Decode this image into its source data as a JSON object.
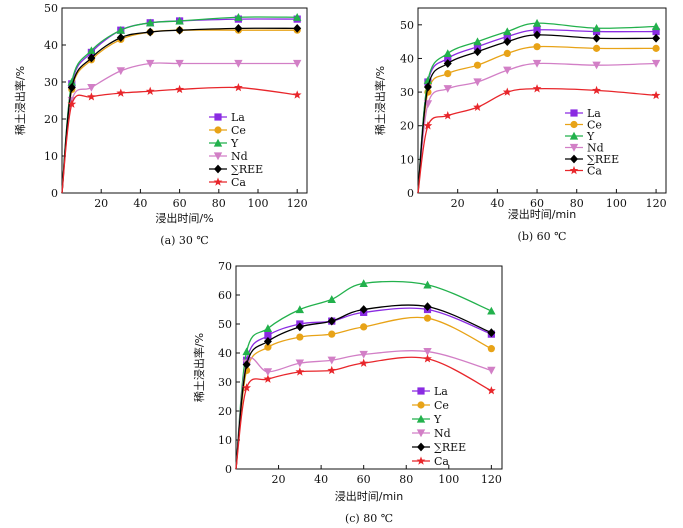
{
  "chart_data": [
    {
      "type": "line",
      "caption": "(a) 30 ℃",
      "xlabel": "浸出时间/%",
      "ylabel": "稀土浸出率/%",
      "xlim": [
        0,
        125
      ],
      "ylim": [
        0,
        50
      ],
      "xticks": [
        20,
        40,
        60,
        80,
        100,
        120
      ],
      "yticks": [
        0,
        10,
        20,
        30,
        40,
        50
      ],
      "x": [
        0,
        5,
        15,
        30,
        45,
        60,
        90,
        120
      ],
      "series": [
        {
          "name": "La",
          "values": [
            0,
            29.5,
            38.0,
            44.0,
            46.0,
            46.5,
            47.0,
            47.0
          ]
        },
        {
          "name": "Ce",
          "values": [
            0,
            28.0,
            36.0,
            41.5,
            43.5,
            44.0,
            44.0,
            44.0
          ]
        },
        {
          "name": "Y",
          "values": [
            0,
            30.0,
            38.5,
            44.0,
            46.0,
            46.5,
            47.5,
            47.5
          ]
        },
        {
          "name": "Nd",
          "values": [
            0,
            25.0,
            28.5,
            33.0,
            35.0,
            35.0,
            35.0,
            35.0
          ]
        },
        {
          "name": "∑REE",
          "values": [
            0,
            28.5,
            36.5,
            42.0,
            43.5,
            44.0,
            44.5,
            44.5
          ]
        },
        {
          "name": "Ca",
          "values": [
            0,
            24.0,
            26.0,
            27.0,
            27.5,
            28.0,
            28.5,
            26.5
          ]
        }
      ]
    },
    {
      "type": "line",
      "caption": "(b) 60 ℃",
      "xlabel": "浸出时间/min",
      "ylabel": "稀土浸出率/%",
      "xlim": [
        0,
        125
      ],
      "ylim": [
        0,
        55
      ],
      "xticks": [
        20,
        40,
        60,
        80,
        100,
        120
      ],
      "yticks": [
        0,
        10,
        20,
        30,
        40,
        50
      ],
      "x": [
        0,
        5,
        15,
        30,
        45,
        60,
        90,
        120
      ],
      "series": [
        {
          "name": "La",
          "values": [
            0,
            33.0,
            40.0,
            43.5,
            46.5,
            48.5,
            48.0,
            48.0
          ]
        },
        {
          "name": "Ce",
          "values": [
            0,
            30.0,
            35.5,
            38.0,
            41.5,
            43.5,
            43.0,
            43.0
          ]
        },
        {
          "name": "Y",
          "values": [
            0,
            33.5,
            41.5,
            45.0,
            48.0,
            50.5,
            49.0,
            49.5
          ]
        },
        {
          "name": "Nd",
          "values": [
            0,
            26.5,
            31.0,
            33.0,
            36.5,
            38.5,
            38.0,
            38.5
          ]
        },
        {
          "name": "∑REE",
          "values": [
            0,
            31.5,
            38.5,
            42.0,
            45.0,
            47.0,
            46.0,
            46.0
          ]
        },
        {
          "name": "Ca",
          "values": [
            0,
            20.0,
            23.0,
            25.5,
            30.0,
            31.0,
            30.5,
            29.0
          ]
        }
      ]
    },
    {
      "type": "line",
      "caption": "(c) 80 ℃",
      "xlabel": "浸出时间/min",
      "ylabel": "稀土浸出率/%",
      "xlim": [
        0,
        125
      ],
      "ylim": [
        0,
        70
      ],
      "xticks": [
        20,
        40,
        60,
        80,
        100,
        120
      ],
      "yticks": [
        0,
        10,
        20,
        30,
        40,
        50,
        60,
        70
      ],
      "x": [
        0,
        5,
        15,
        30,
        45,
        60,
        90,
        120
      ],
      "series": [
        {
          "name": "La",
          "values": [
            0,
            37.5,
            46.0,
            50.0,
            51.0,
            54.0,
            55.0,
            46.5
          ]
        },
        {
          "name": "Ce",
          "values": [
            0,
            34.0,
            42.0,
            45.5,
            46.5,
            49.0,
            52.0,
            41.5
          ]
        },
        {
          "name": "Y",
          "values": [
            0,
            40.5,
            48.5,
            55.0,
            58.5,
            64.0,
            63.5,
            54.5
          ]
        },
        {
          "name": "Nd",
          "values": [
            0,
            36.5,
            33.5,
            36.5,
            37.5,
            39.5,
            40.5,
            34.0
          ]
        },
        {
          "name": "∑REE",
          "values": [
            0,
            36.0,
            44.0,
            49.0,
            51.0,
            55.0,
            56.0,
            47.0
          ]
        },
        {
          "name": "Ca",
          "values": [
            0,
            28.0,
            31.0,
            33.5,
            34.0,
            36.5,
            38.0,
            27.0
          ]
        }
      ]
    }
  ],
  "legend": [
    {
      "name": "La",
      "color": "#8a2be2",
      "marker": "square"
    },
    {
      "name": "Ce",
      "color": "#e8a317",
      "marker": "circle"
    },
    {
      "name": "Y",
      "color": "#22b14c",
      "marker": "triangle-up"
    },
    {
      "name": "Nd",
      "color": "#d27fc6",
      "marker": "triangle-down"
    },
    {
      "name": "∑REE",
      "color": "#000000",
      "marker": "diamond"
    },
    {
      "name": "Ca",
      "color": "#e8262b",
      "marker": "star"
    }
  ]
}
